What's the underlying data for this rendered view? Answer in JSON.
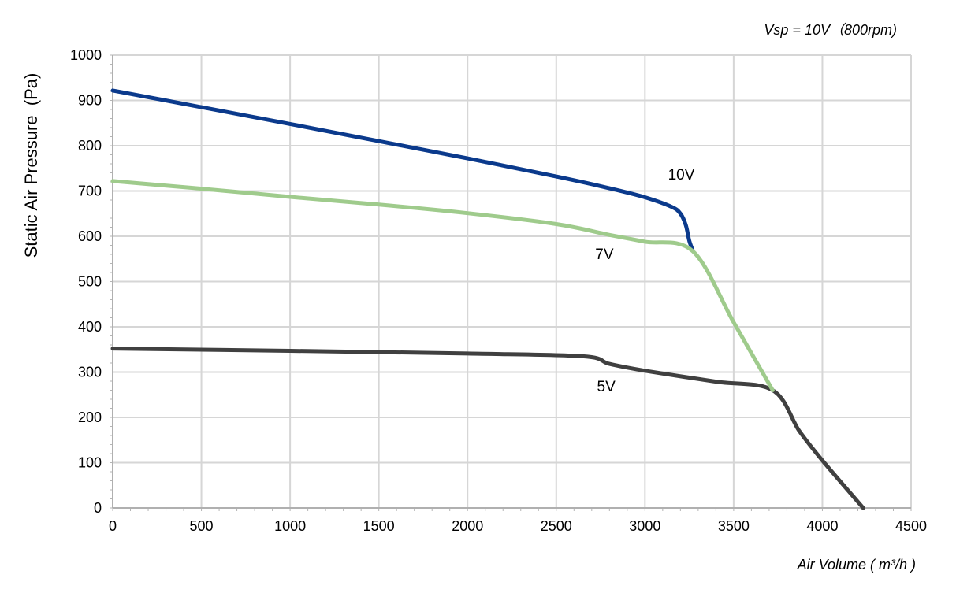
{
  "chart_data": {
    "type": "line",
    "subtitle": "Vsp = 10V（800rpm)",
    "xlabel": "Air Volume ( m³/h )",
    "ylabel": "Static Air Pressure  (Pa)",
    "xlim": [
      0,
      4500
    ],
    "ylim": [
      0,
      1000
    ],
    "xticks": [
      0,
      500,
      1000,
      1500,
      2000,
      2500,
      3000,
      3500,
      4000,
      4500
    ],
    "yticks": [
      0,
      100,
      200,
      300,
      400,
      500,
      600,
      700,
      800,
      900,
      1000
    ],
    "grid": true,
    "series": [
      {
        "name": "10V",
        "color": "#0b3a8c",
        "points": [
          [
            0,
            922
          ],
          [
            500,
            885
          ],
          [
            1000,
            848
          ],
          [
            1500,
            810
          ],
          [
            2000,
            772
          ],
          [
            2500,
            732
          ],
          [
            2800,
            706
          ],
          [
            3000,
            686
          ],
          [
            3150,
            665
          ],
          [
            3200,
            650
          ],
          [
            3230,
            625
          ],
          [
            3250,
            590
          ],
          [
            3270,
            568
          ]
        ]
      },
      {
        "name": "7V",
        "color": "#9fcb8c",
        "points": [
          [
            0,
            722
          ],
          [
            500,
            705
          ],
          [
            1000,
            687
          ],
          [
            1500,
            670
          ],
          [
            2000,
            651
          ],
          [
            2500,
            627
          ],
          [
            2800,
            603
          ],
          [
            3000,
            588
          ],
          [
            3270,
            567
          ],
          [
            3500,
            410
          ],
          [
            3720,
            260
          ]
        ]
      },
      {
        "name": "5V",
        "color": "#404040",
        "points": [
          [
            0,
            352
          ],
          [
            1000,
            347
          ],
          [
            2000,
            341
          ],
          [
            2650,
            335
          ],
          [
            2800,
            318
          ],
          [
            3000,
            303
          ],
          [
            3400,
            279
          ],
          [
            3720,
            260
          ],
          [
            3870,
            170
          ],
          [
            4000,
            105
          ],
          [
            4230,
            0
          ]
        ]
      }
    ],
    "labels": [
      {
        "series": "10V",
        "text": "10V",
        "x": 3130,
        "y": 725
      },
      {
        "series": "7V",
        "text": "7V",
        "x": 2720,
        "y": 550
      },
      {
        "series": "5V",
        "text": "5V",
        "x": 2730,
        "y": 257
      }
    ]
  }
}
